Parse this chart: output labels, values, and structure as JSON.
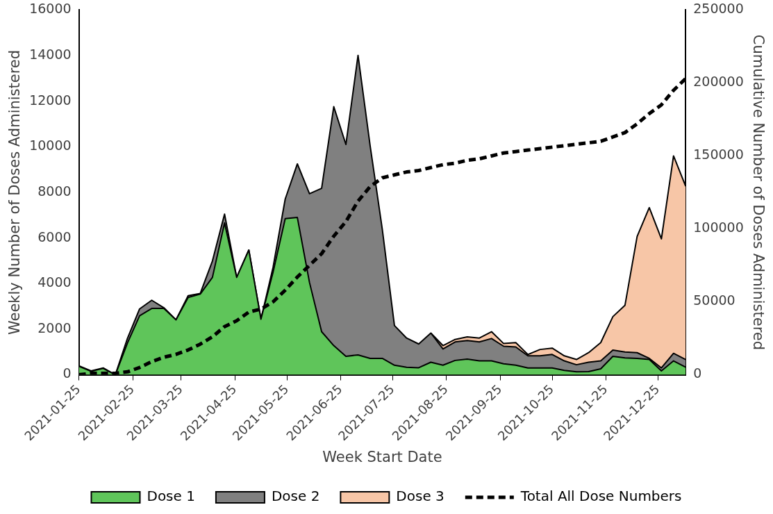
{
  "chart_data": {
    "type": "area",
    "stacked": true,
    "xlabel": "Week Start Date",
    "ylabel": "Weekly Number of Doses Administered",
    "y2label": "Cumulative Number of Doses Administered",
    "x": [
      "2021-01-25",
      "2021-02-01",
      "2021-02-08",
      "2021-02-15",
      "2021-02-22",
      "2021-03-01",
      "2021-03-08",
      "2021-03-15",
      "2021-03-22",
      "2021-03-29",
      "2021-04-05",
      "2021-04-12",
      "2021-04-19",
      "2021-04-26",
      "2021-05-03",
      "2021-05-10",
      "2021-05-17",
      "2021-05-24",
      "2021-05-31",
      "2021-06-07",
      "2021-06-14",
      "2021-06-21",
      "2021-06-28",
      "2021-07-05",
      "2021-07-12",
      "2021-07-19",
      "2021-07-26",
      "2021-08-02",
      "2021-08-09",
      "2021-08-16",
      "2021-08-23",
      "2021-08-30",
      "2021-09-06",
      "2021-09-13",
      "2021-09-20",
      "2021-09-27",
      "2021-10-04",
      "2021-10-11",
      "2021-10-18",
      "2021-10-25",
      "2021-11-01",
      "2021-11-08",
      "2021-11-15",
      "2021-11-22",
      "2021-11-29",
      "2021-12-06",
      "2021-12-13",
      "2021-12-20",
      "2021-12-27",
      "2022-01-03",
      "2022-01-10"
    ],
    "series": [
      {
        "name": "Dose 1",
        "color": "#5fc55a",
        "values": [
          370,
          150,
          280,
          0,
          1390,
          2590,
          2910,
          2910,
          2410,
          3390,
          3540,
          4270,
          6660,
          4270,
          5470,
          2440,
          4500,
          6850,
          6900,
          4050,
          1890,
          1280,
          810,
          870,
          720,
          720,
          420,
          330,
          310,
          550,
          420,
          630,
          690,
          610,
          610,
          480,
          420,
          300,
          300,
          300,
          190,
          130,
          140,
          260,
          810,
          740,
          720,
          670,
          170,
          610,
          330
        ]
      },
      {
        "name": "Dose 2",
        "color": "#808080",
        "values": [
          20,
          20,
          20,
          0,
          210,
          300,
          360,
          30,
          0,
          80,
          30,
          720,
          390,
          0,
          0,
          0,
          220,
          860,
          2350,
          3890,
          6290,
          10480,
          9290,
          13140,
          9320,
          5660,
          1740,
          1280,
          1040,
          1280,
          710,
          810,
          810,
          830,
          980,
          770,
          800,
          530,
          530,
          590,
          420,
          310,
          410,
          350,
          270,
          260,
          250,
          50,
          130,
          330,
          340
        ]
      },
      {
        "name": "Dose 3",
        "color": "#f7c6a7",
        "values": [
          null,
          null,
          null,
          null,
          null,
          null,
          null,
          null,
          null,
          null,
          null,
          null,
          null,
          null,
          null,
          null,
          null,
          null,
          null,
          null,
          null,
          null,
          null,
          null,
          null,
          null,
          null,
          null,
          null,
          0,
          150,
          110,
          160,
          170,
          300,
          120,
          190,
          60,
          280,
          280,
          220,
          230,
          420,
          800,
          1470,
          2050,
          5100,
          6610,
          5660,
          8660,
          7600
        ]
      },
      {
        "name": "Total All Dose Numbers",
        "type": "line",
        "axis": "y2",
        "color": "#000000",
        "line_style": "dashed",
        "values": [
          0,
          1000,
          1000,
          1000,
          2000,
          5000,
          9000,
          12000,
          14000,
          17000,
          21000,
          26000,
          33000,
          37000,
          43000,
          45000,
          50000,
          58000,
          67000,
          75000,
          83000,
          95000,
          105000,
          119000,
          129000,
          135000,
          137000,
          139000,
          140000,
          142000,
          144000,
          145000,
          147000,
          148000,
          150000,
          152000,
          153000,
          154000,
          155000,
          156000,
          157000,
          158000,
          159000,
          160000,
          163000,
          166000,
          172000,
          179000,
          185000,
          195000,
          203000
        ]
      }
    ],
    "xlim": [
      "2021-01-25",
      "2022-01-10"
    ],
    "xticks": [
      "2021-01-25",
      "2021-02-25",
      "2021-03-25",
      "2021-04-25",
      "2021-05-25",
      "2021-06-25",
      "2021-07-25",
      "2021-08-25",
      "2021-09-25",
      "2021-10-25",
      "2021-11-25",
      "2021-12-25"
    ],
    "ylim": [
      0,
      16000
    ],
    "yticks": [
      0,
      2000,
      4000,
      6000,
      8000,
      10000,
      12000,
      14000,
      16000
    ],
    "y2lim": [
      0,
      250000
    ],
    "y2ticks": [
      0,
      50000,
      100000,
      150000,
      200000,
      250000
    ],
    "grid": false,
    "legend": "bottom"
  }
}
